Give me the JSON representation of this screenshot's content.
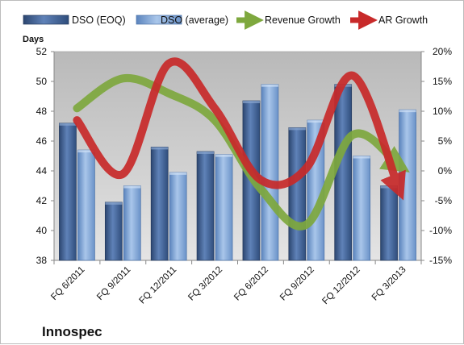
{
  "chart_data": {
    "type": "bar",
    "categories": [
      "FQ 6/2011",
      "FQ 9/2011",
      "FQ 12/2011",
      "FQ 3/2012",
      "FQ 6/2012",
      "FQ 9/2012",
      "FQ 12/2012",
      "FQ 3/2013"
    ],
    "series": [
      {
        "name": "DSO (EOQ)",
        "kind": "bar",
        "axis": "left",
        "color": "#3f5f93",
        "values": [
          47.2,
          41.9,
          45.6,
          45.3,
          48.7,
          46.9,
          49.8,
          43.0
        ]
      },
      {
        "name": "DSO (average)",
        "kind": "bar",
        "axis": "left",
        "color": "#7ea3d4",
        "values": [
          45.4,
          43.0,
          43.9,
          45.1,
          49.8,
          47.4,
          45.0,
          48.1
        ]
      },
      {
        "name": "Revenue Growth",
        "kind": "line",
        "axis": "right",
        "color": "#7ea83e",
        "values": [
          10.5,
          15.5,
          13.0,
          8.5,
          -3.0,
          -9.0,
          6.0,
          1.0
        ]
      },
      {
        "name": "AR Growth",
        "kind": "line",
        "axis": "right",
        "color": "#c82a2a",
        "values": [
          8.5,
          -0.5,
          18.0,
          10.5,
          -1.5,
          0.5,
          16.0,
          -2.8
        ]
      }
    ],
    "ylabel": "Days",
    "ylim": [
      38,
      52
    ],
    "yticks": [
      "38",
      "40",
      "42",
      "44",
      "46",
      "48",
      "50",
      "52"
    ],
    "y2lim": [
      -15,
      20
    ],
    "y2ticks": [
      "-15%",
      "-10%",
      "-5%",
      "0%",
      "5%",
      "10%",
      "15%",
      "20%"
    ],
    "grid": false,
    "legend": "top"
  },
  "company": "Innospec"
}
